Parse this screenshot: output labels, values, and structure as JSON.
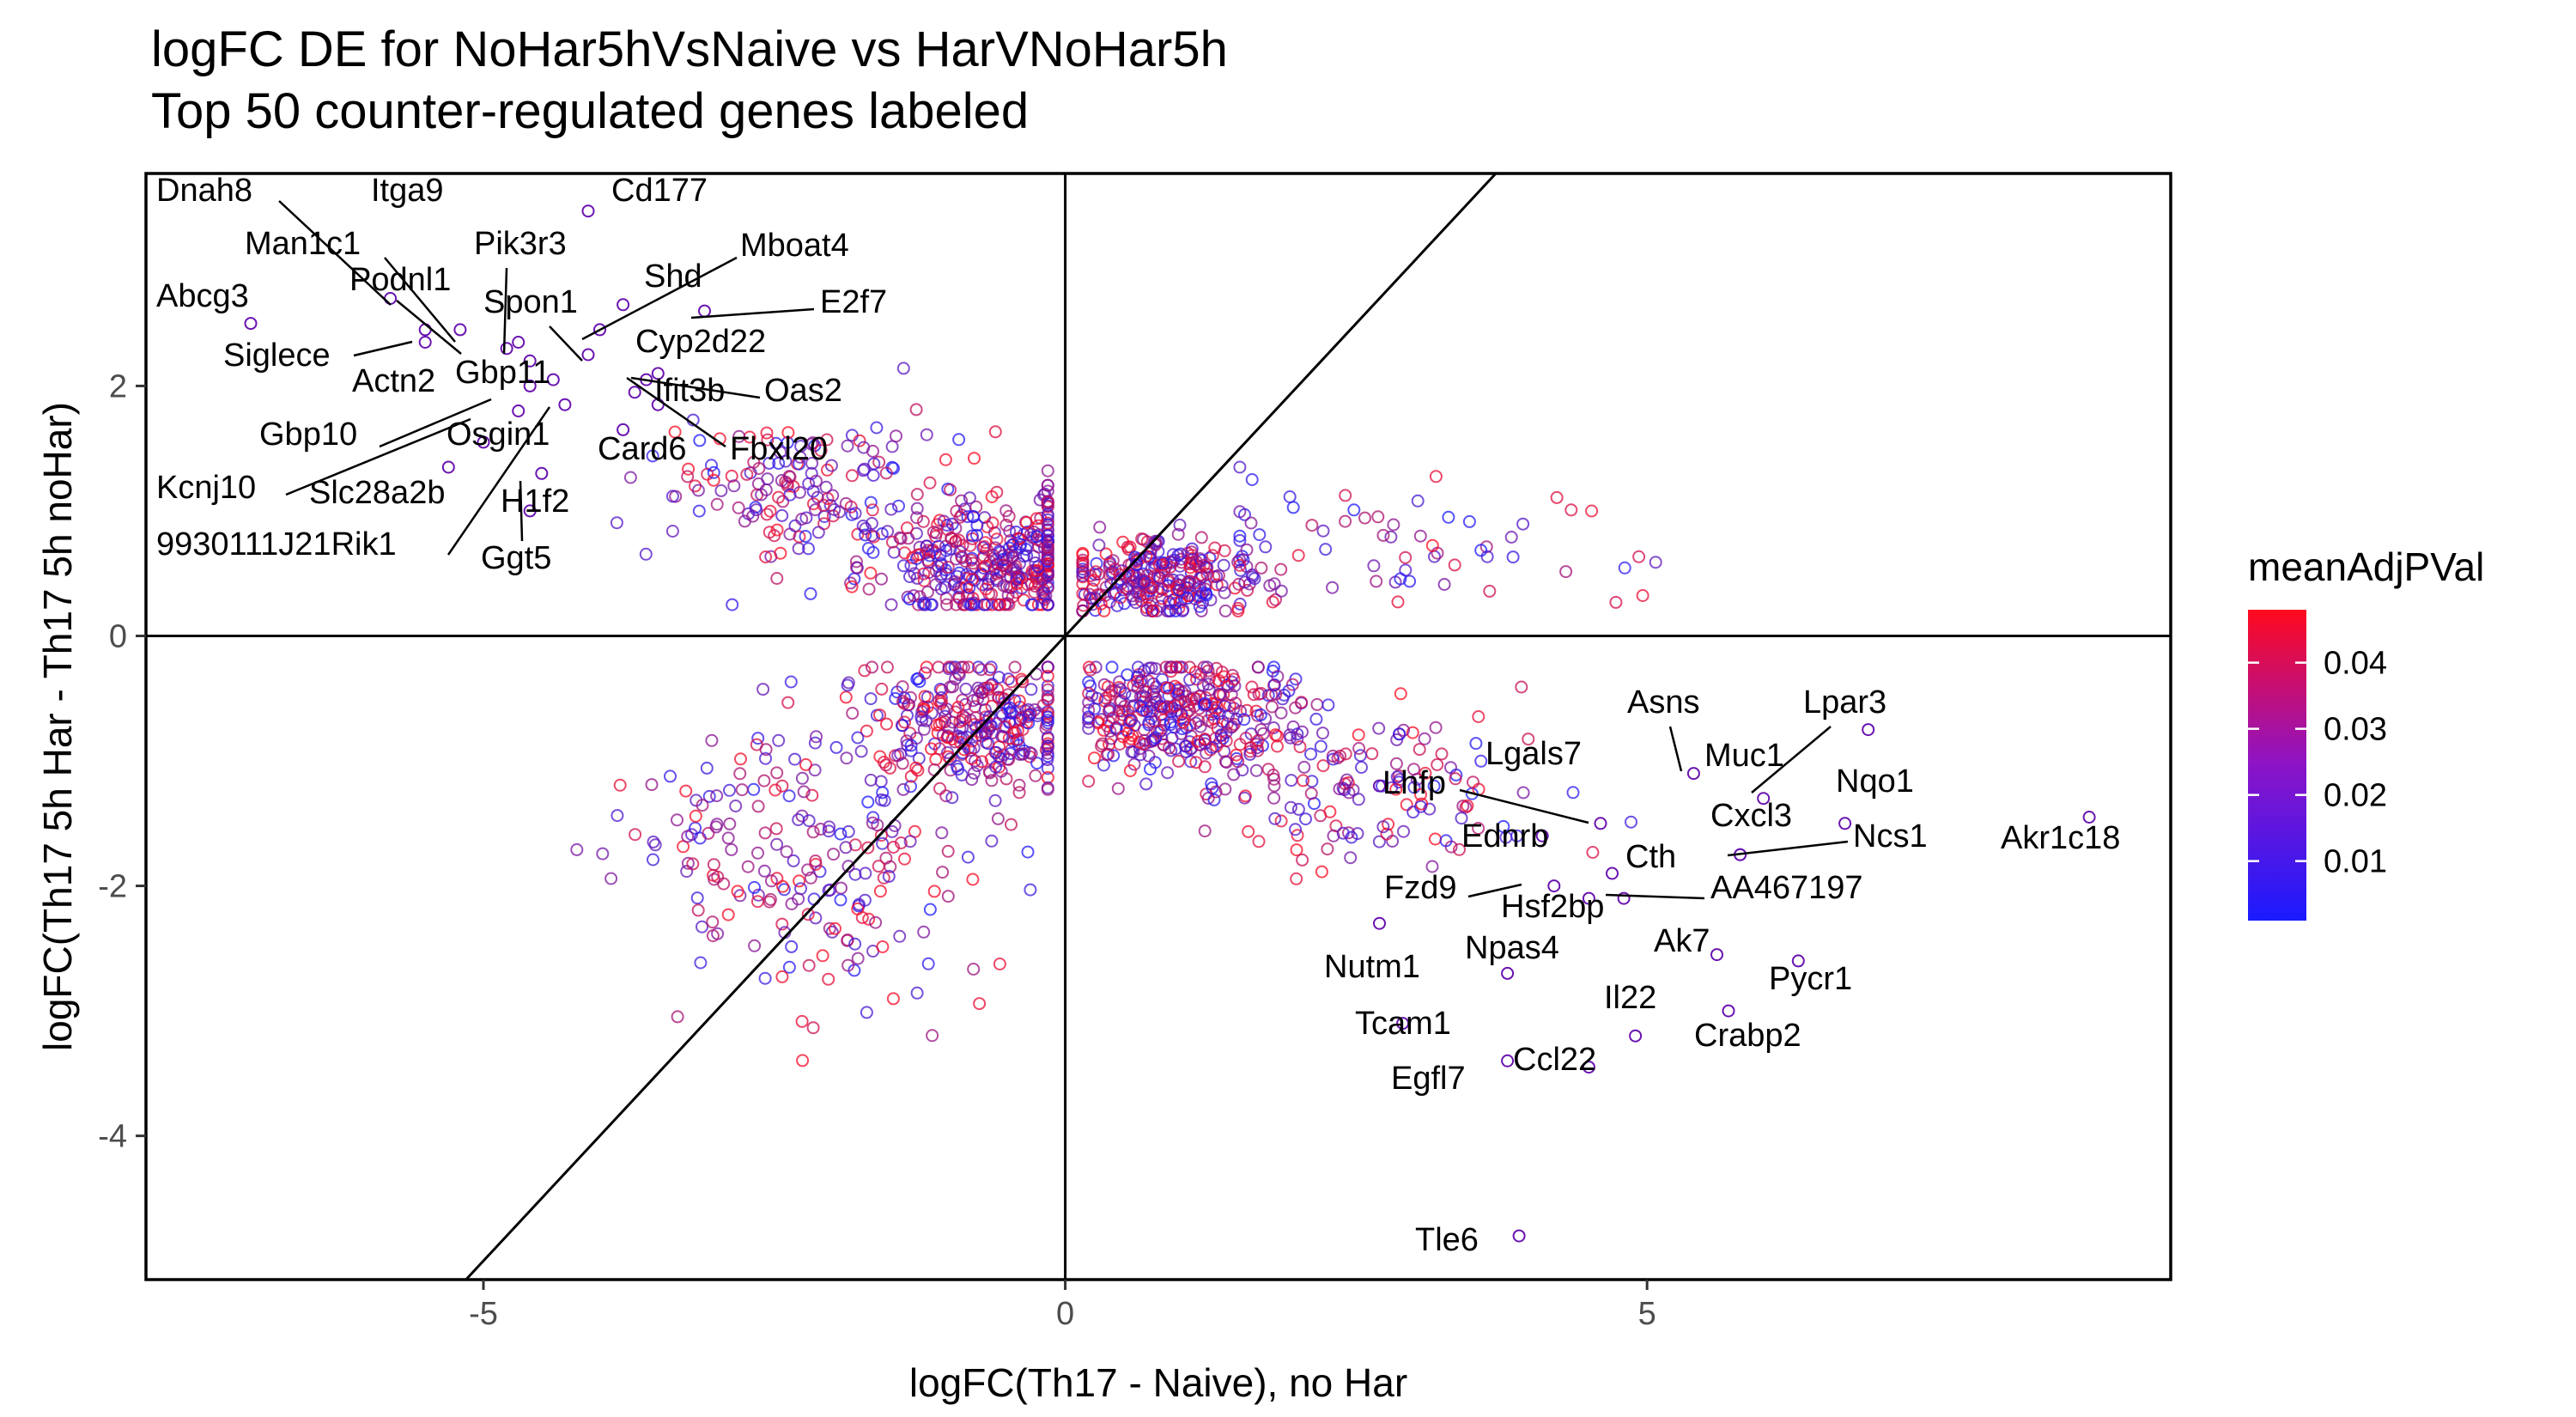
{
  "chart_data": {
    "type": "scatter",
    "title": "logFC DE for NoHar5hVsNaive vs HarVNoHar5h",
    "subtitle": "Top 50 counter-regulated genes labeled",
    "xlabel": "logFC(Th17 - Naive), no Har",
    "ylabel": "logFC(Th17 5h Har - Th17 5h noHar)",
    "xlim": [
      -7.9,
      9.5
    ],
    "ylim": [
      -5.15,
      3.7
    ],
    "x_ticks": [
      {
        "value": -5,
        "label": "-5"
      },
      {
        "value": 0,
        "label": "0"
      },
      {
        "value": 5,
        "label": "5"
      }
    ],
    "y_ticks": [
      {
        "value": -4,
        "label": "-4"
      },
      {
        "value": -2,
        "label": "-2"
      },
      {
        "value": 0,
        "label": "0"
      },
      {
        "value": 2,
        "label": "2"
      }
    ],
    "reference_lines": [
      "x = 0",
      "y = 0",
      "y = x"
    ],
    "grid": false,
    "legend": {
      "title": "meanAdjPVal",
      "position": "right",
      "low_color": "#1a1aff",
      "high_color": "#ff0a1e",
      "range": [
        0.001,
        0.048
      ],
      "ticks": [
        {
          "value": 0.01,
          "label": "0.01"
        },
        {
          "value": 0.02,
          "label": "0.02"
        },
        {
          "value": 0.03,
          "label": "0.03"
        },
        {
          "value": 0.04,
          "label": "0.04"
        }
      ]
    },
    "labeled_genes": [
      {
        "label": "Dnah8",
        "x": -5.8,
        "y": 2.7
      },
      {
        "label": "Itga9",
        "x": -4.7,
        "y": 2.35
      },
      {
        "label": "Cd177",
        "x": -4.1,
        "y": 3.4
      },
      {
        "label": "Man1c1",
        "x": -5.2,
        "y": 2.45
      },
      {
        "label": "Pik3r3",
        "x": -4.8,
        "y": 2.3
      },
      {
        "label": "Mboat4",
        "x": -4.0,
        "y": 2.45
      },
      {
        "label": "Podnl1",
        "x": -5.5,
        "y": 2.35
      },
      {
        "label": "Shd",
        "x": -3.8,
        "y": 2.65
      },
      {
        "label": "Abcg3",
        "x": -7.0,
        "y": 2.5
      },
      {
        "label": "Spon1",
        "x": -4.1,
        "y": 2.25
      },
      {
        "label": "E2f7",
        "x": -3.1,
        "y": 2.6
      },
      {
        "label": "Siglece",
        "x": -5.5,
        "y": 2.45
      },
      {
        "label": "Cyp2d22",
        "x": -3.6,
        "y": 2.05
      },
      {
        "label": "Actn2",
        "x": -4.6,
        "y": 2.2
      },
      {
        "label": "Gbp11",
        "x": -4.4,
        "y": 2.05
      },
      {
        "label": "Ifit3b",
        "x": -3.5,
        "y": 1.85
      },
      {
        "label": "Oas2",
        "x": -3.5,
        "y": 2.1
      },
      {
        "label": "Gbp10",
        "x": -4.6,
        "y": 2.0
      },
      {
        "label": "Osgin1",
        "x": -4.7,
        "y": 1.8
      },
      {
        "label": "Card6",
        "x": -3.8,
        "y": 1.65
      },
      {
        "label": "Fbxl20",
        "x": -3.7,
        "y": 1.95
      },
      {
        "label": "Kcnj10",
        "x": -5.3,
        "y": 1.35
      },
      {
        "label": "Slc28a2b",
        "x": -5.0,
        "y": 1.55
      },
      {
        "label": "H1f2",
        "x": -4.5,
        "y": 1.3
      },
      {
        "label": "9930111J21Rik1",
        "x": -4.3,
        "y": 1.85
      },
      {
        "label": "Ggt5",
        "x": -4.6,
        "y": 1.0
      },
      {
        "label": "Asns",
        "x": 5.4,
        "y": -1.1
      },
      {
        "label": "Lpar3",
        "x": 6.9,
        "y": -0.75
      },
      {
        "label": "Muc1",
        "x": 6.0,
        "y": -1.3
      },
      {
        "label": "Lgals7",
        "x": 4.6,
        "y": -1.5
      },
      {
        "label": "Nqo1",
        "x": 6.7,
        "y": -1.5
      },
      {
        "label": "Lhfp",
        "x": 2.7,
        "y": -1.2
      },
      {
        "label": "Cxcl3",
        "x": 5.8,
        "y": -1.75
      },
      {
        "label": "Ncs1",
        "x": 5.8,
        "y": -1.75
      },
      {
        "label": "Akr1c18",
        "x": 8.8,
        "y": -1.45
      },
      {
        "label": "Ednrb",
        "x": 4.1,
        "y": -1.6
      },
      {
        "label": "Cth",
        "x": 4.7,
        "y": -1.9
      },
      {
        "label": "Fzd9",
        "x": 4.2,
        "y": -2.0
      },
      {
        "label": "Hsf2bp",
        "x": 4.5,
        "y": -2.1
      },
      {
        "label": "AA467197",
        "x": 4.8,
        "y": -2.1
      },
      {
        "label": "Ak7",
        "x": 5.6,
        "y": -2.55
      },
      {
        "label": "Nutm1",
        "x": 2.7,
        "y": -2.3
      },
      {
        "label": "Npas4",
        "x": 3.8,
        "y": -2.7
      },
      {
        "label": "Pycr1",
        "x": 6.3,
        "y": -2.6
      },
      {
        "label": "Il22",
        "x": 4.9,
        "y": -3.2
      },
      {
        "label": "Tcam1",
        "x": 2.9,
        "y": -3.1
      },
      {
        "label": "Crabp2",
        "x": 5.7,
        "y": -3.0
      },
      {
        "label": "Ccl22",
        "x": 4.5,
        "y": -3.45
      },
      {
        "label": "Egfl7",
        "x": 3.8,
        "y": -3.4
      },
      {
        "label": "Tle6",
        "x": 3.9,
        "y": -4.8
      }
    ],
    "other_points_note": ""
  }
}
